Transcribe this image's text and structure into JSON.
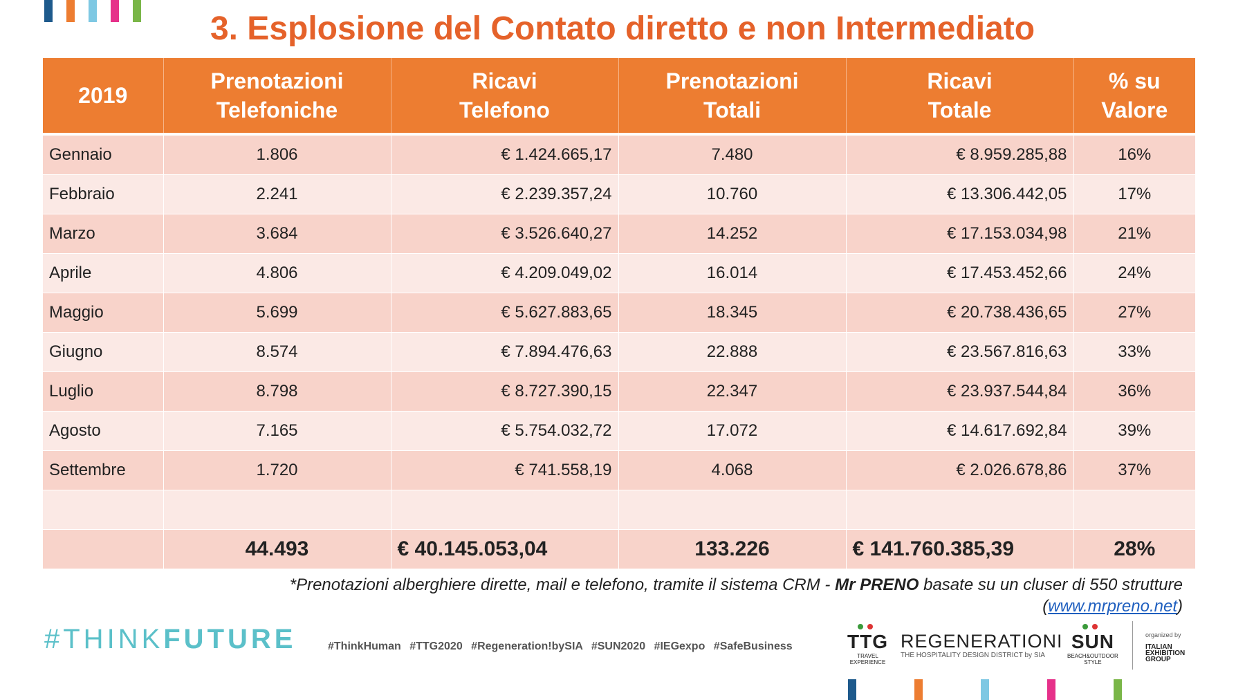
{
  "title": "3. Esplosione del Contato diretto e non Intermediato",
  "colors": {
    "accent": "#ED7D31",
    "title": "#E5622A",
    "row_dark": "#F8D3CA",
    "row_light": "#FBE9E5",
    "stripes": [
      "#1E5A8C",
      "#ED7D31",
      "#7EC8E3",
      "#E6318A",
      "#7AB648"
    ]
  },
  "table": {
    "headers": [
      [
        "2019",
        ""
      ],
      [
        "Prenotazioni",
        "Telefoniche"
      ],
      [
        "Ricavi",
        "Telefono"
      ],
      [
        "Prenotazioni",
        "Totali"
      ],
      [
        "Ricavi",
        "Totale"
      ],
      [
        "% su",
        "Valore"
      ]
    ],
    "rows": [
      [
        "Gennaio",
        "1.806",
        "€ 1.424.665,17",
        "7.480",
        "€ 8.959.285,88",
        "16%"
      ],
      [
        "Febbraio",
        "2.241",
        "€ 2.239.357,24",
        "10.760",
        "€ 13.306.442,05",
        "17%"
      ],
      [
        "Marzo",
        "3.684",
        "€ 3.526.640,27",
        "14.252",
        "€ 17.153.034,98",
        "21%"
      ],
      [
        "Aprile",
        "4.806",
        "€ 4.209.049,02",
        "16.014",
        "€ 17.453.452,66",
        "24%"
      ],
      [
        "Maggio",
        "5.699",
        "€ 5.627.883,65",
        "18.345",
        "€ 20.738.436,65",
        "27%"
      ],
      [
        "Giugno",
        "8.574",
        "€ 7.894.476,63",
        "22.888",
        "€ 23.567.816,63",
        "33%"
      ],
      [
        "Luglio",
        "8.798",
        "€ 8.727.390,15",
        "22.347",
        "€ 23.937.544,84",
        "36%"
      ],
      [
        "Agosto",
        "7.165",
        "€ 5.754.032,72",
        "17.072",
        "€ 14.617.692,84",
        "39%"
      ],
      [
        "Settembre",
        "1.720",
        "€ 741.558,19",
        "4.068",
        "€ 2.026.678,86",
        "37%"
      ],
      [
        "",
        "",
        "",
        "",
        "",
        ""
      ]
    ],
    "total": [
      "",
      "44.493",
      "€ 40.145.053,04",
      "133.226",
      "€ 141.760.385,39",
      "28%"
    ]
  },
  "footnote": {
    "part1": "*Prenotazioni alberghiere dirette, mail e telefono, tramite il sistema CRM - ",
    "bold": "Mr PRENO",
    "part2": " basate su un cluser di 550 strutture",
    "link_open": "(",
    "link": "www.mrpreno.net",
    "link_close": ")"
  },
  "footer": {
    "think_prefix": "#THINK",
    "think_bold": "FUTURE",
    "hashtags": "#ThinkHuman #TTG2020 #Regeneration!bySIA #SUN2020 #IEGexpo #SafeBusiness",
    "ttg": {
      "name": "TTG",
      "sub1": "TRAVEL",
      "sub2": "EXPERIENCE"
    },
    "regen": {
      "name": "REGENERATIONI",
      "sub": "THE HOSPITALITY DESIGN DISTRICT by SIA"
    },
    "sun": {
      "name": "SUN",
      "sub1": "BEACH&OUTDOOR",
      "sub2": "STYLE"
    },
    "ieg": {
      "organized": "organized by",
      "l1": "ITALIAN",
      "l2": "EXHIBITION",
      "l3": "GROUP"
    }
  }
}
